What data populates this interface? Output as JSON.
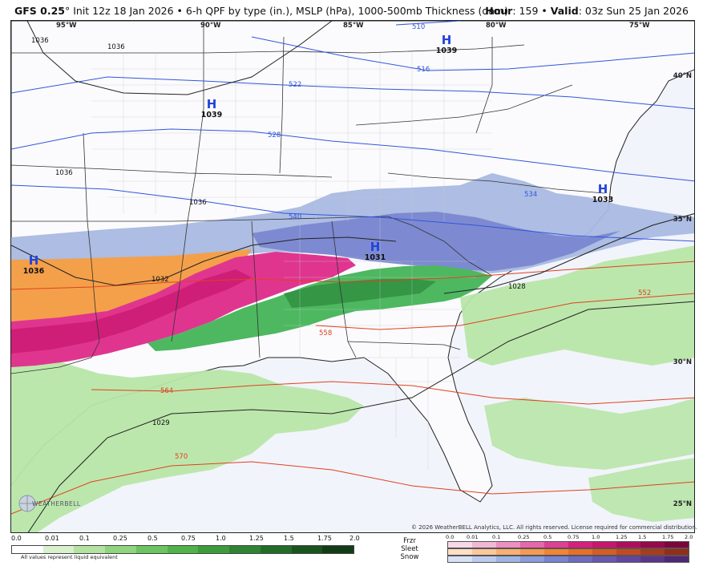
{
  "header": {
    "model": "GFS 0.25",
    "degree_sym": "°",
    "description": " Init 12z 18 Jan 2026 • 6-h QPF by type (in.), MSLP (hPa), 1000-500mb Thickness (dam)",
    "hour_label": "Hour",
    "hour_value": ": 159 • ",
    "valid_label": "Valid",
    "valid_value": ": 03z Sun 25 Jan 2026"
  },
  "map": {
    "longitudes": [
      "95°W",
      "90°W",
      "85°W",
      "80°W",
      "75°W"
    ],
    "latitudes": [
      "40°N",
      "35°N",
      "30°N",
      "25°N"
    ],
    "high_centers": [
      {
        "symbol": "H",
        "pressure": "1039"
      },
      {
        "symbol": "H",
        "pressure": "1039"
      },
      {
        "symbol": "H",
        "pressure": "1036"
      },
      {
        "symbol": "H",
        "pressure": "1031"
      },
      {
        "symbol": "H",
        "pressure": "1033"
      }
    ],
    "thickness_labels_blue": [
      "510",
      "516",
      "522",
      "528",
      "534",
      "540"
    ],
    "thickness_labels_red": [
      "552",
      "558",
      "564",
      "570"
    ],
    "isobar_labels": [
      "1036",
      "1036",
      "1036",
      "1036",
      "1032",
      "1028",
      "1029"
    ],
    "colors": {
      "ocean": "#f2f4fb",
      "snow": "#8ea4d8",
      "snow_heavy": "#6f78c8",
      "ice": "#e0358f",
      "sleet": "#f4a04a",
      "rain_light": "#b8e6a8",
      "rain": "#4db860",
      "rain_heavy": "#2f8d3f",
      "thickness": "#3355dd",
      "thickness_warm": "#e04020"
    }
  },
  "logo": {
    "text": "WEATHERBELL"
  },
  "copyright": "© 2026 WeatherBELL Analytics, LLC. All rights reserved. License required for commercial distribution.",
  "legend": {
    "qpf_ticks": [
      "0.0",
      "0.01",
      "0.1",
      "0.25",
      "0.5",
      "0.75",
      "1.0",
      "1.25",
      "1.5",
      "1.75",
      "2.0"
    ],
    "qpf_colors": [
      "#ffffff",
      "#d8f0cc",
      "#b4e2a2",
      "#8fd47e",
      "#6cc460",
      "#4fb34a",
      "#3c9c3c",
      "#2e8432",
      "#236c28",
      "#1a541f",
      "#123c16"
    ],
    "qpf_note": "All values represent liquid equivalent",
    "ptype_labels": [
      "Frzr",
      "Sleet",
      "Snow"
    ],
    "ptype_ticks": [
      "0.0",
      "0.01",
      "0.1",
      "0.25",
      "0.5",
      "0.75",
      "1.0",
      "1.25",
      "1.5",
      "1.75",
      "2.0"
    ],
    "frzr_colors": [
      "#f6d8e8",
      "#f0b8d6",
      "#ec8fc2",
      "#e866ad",
      "#e03f96",
      "#d81f80",
      "#c8156e",
      "#b00e5c",
      "#96094b",
      "#7c063c"
    ],
    "sleet_colors": [
      "#fde0c6",
      "#fbc89c",
      "#f8b072",
      "#f59a52",
      "#f08536",
      "#e6702a",
      "#d65c26",
      "#c24a22",
      "#ab3a1e",
      "#922d1a"
    ],
    "snow_colors": [
      "#d8e2f6",
      "#bcccee",
      "#a0b4e4",
      "#8a9cda",
      "#7884ce",
      "#6e6cc0",
      "#6858b0",
      "#62469e",
      "#5a368a",
      "#4e2874"
    ]
  }
}
